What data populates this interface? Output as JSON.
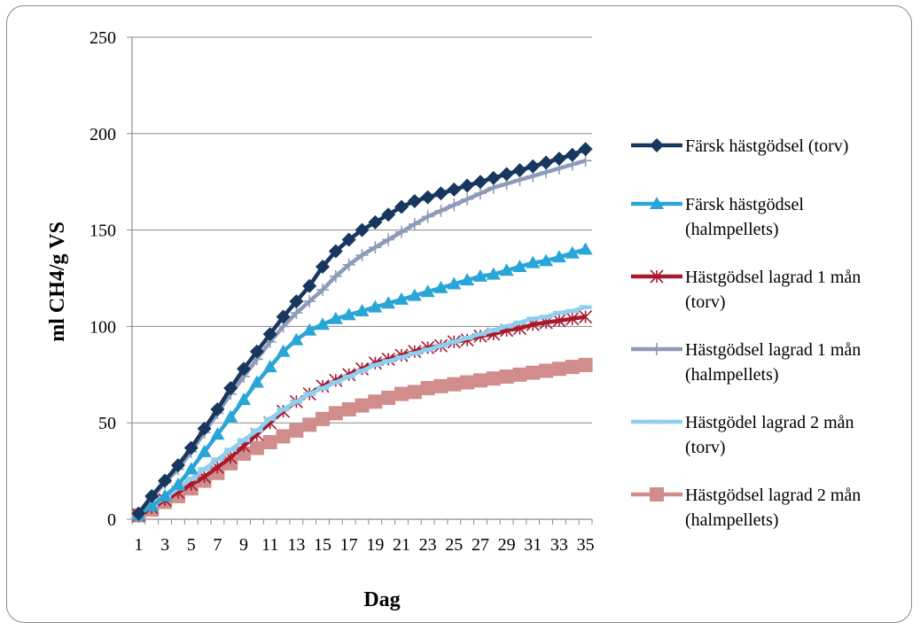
{
  "chart_data": {
    "type": "line",
    "title": "",
    "xlabel": "Dag",
    "ylabel": "ml CH4/g VS",
    "ylim": [
      0,
      250
    ],
    "yticks": [
      0,
      50,
      100,
      150,
      200,
      250
    ],
    "x": [
      1,
      2,
      3,
      4,
      5,
      6,
      7,
      8,
      9,
      10,
      11,
      12,
      13,
      14,
      15,
      16,
      17,
      18,
      19,
      20,
      21,
      22,
      23,
      24,
      25,
      26,
      27,
      28,
      29,
      30,
      31,
      32,
      33,
      34,
      35
    ],
    "xtick_labels": [
      "1",
      "3",
      "5",
      "7",
      "9",
      "11",
      "13",
      "15",
      "17",
      "19",
      "21",
      "23",
      "25",
      "27",
      "29",
      "31",
      "33",
      "35"
    ],
    "grid": "horizontal",
    "legend_position": "right",
    "series": [
      {
        "name": "Färsk hästgödsel (torv)",
        "color": "#17375E",
        "marker": "diamond",
        "values": [
          3,
          12,
          20,
          28,
          37,
          47,
          57,
          68,
          78,
          87,
          96,
          105,
          113,
          121,
          131,
          139,
          145,
          150,
          154,
          158,
          162,
          165,
          167,
          169,
          171,
          173,
          175,
          177,
          179,
          181,
          183,
          185,
          187,
          189,
          192
        ]
      },
      {
        "name": "Färsk hästgödsel (halmpellets)",
        "color": "#2AA6D6",
        "marker": "triangle",
        "values": [
          2,
          7,
          12,
          18,
          26,
          35,
          44,
          53,
          62,
          71,
          79,
          87,
          93,
          98,
          101,
          104,
          106,
          108,
          110,
          112,
          114,
          116,
          118,
          120,
          122,
          124,
          126,
          127,
          129,
          131,
          133,
          134,
          136,
          138,
          140
        ]
      },
      {
        "name": "Hästgödsel lagrad 1 mån (torv)",
        "color": "#A6192E",
        "marker": "asterisk",
        "values": [
          2,
          6,
          10,
          14,
          18,
          22,
          27,
          32,
          38,
          44,
          50,
          56,
          61,
          65,
          69,
          72,
          75,
          78,
          81,
          83,
          85,
          87,
          89,
          90,
          92,
          93,
          95,
          96,
          98,
          99,
          101,
          102,
          103,
          104,
          105
        ]
      },
      {
        "name": "Hästgödsel lagrad 1 mån (halmpellets)",
        "color": "#8E9BB8",
        "marker": "plus",
        "values": [
          3,
          11,
          19,
          26,
          35,
          45,
          55,
          65,
          74,
          83,
          92,
          100,
          107,
          113,
          119,
          126,
          132,
          137,
          141,
          145,
          149,
          153,
          157,
          160,
          163,
          166,
          169,
          172,
          174,
          176,
          178,
          180,
          182,
          184,
          186
        ]
      },
      {
        "name": "Hästgödel lagrad 2 mån (torv)",
        "color": "#8ECFEE",
        "marker": "line",
        "values": [
          3,
          7,
          11,
          16,
          21,
          26,
          31,
          36,
          41,
          46,
          52,
          57,
          61,
          65,
          68,
          71,
          74,
          77,
          80,
          82,
          84,
          86,
          88,
          90,
          92,
          94,
          96,
          98,
          100,
          102,
          104,
          105,
          107,
          108,
          110
        ]
      },
      {
        "name": "Hästgödsel lagrad 2 mån (halmpellets)",
        "color": "#D18C8C",
        "marker": "square",
        "values": [
          2,
          5,
          9,
          12,
          16,
          20,
          24,
          29,
          34,
          37,
          40,
          43,
          46,
          49,
          52,
          55,
          57,
          59,
          61,
          63,
          65,
          66,
          68,
          69,
          70,
          71,
          72,
          73,
          74,
          75,
          76,
          77,
          78,
          79,
          80
        ]
      }
    ]
  }
}
